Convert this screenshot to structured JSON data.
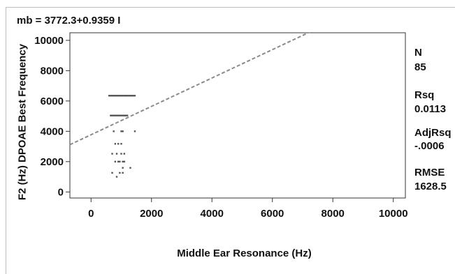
{
  "chart_data": {
    "type": "scatter",
    "title": "mb = 3772.3+0.9359 I",
    "xlabel": "Middle Ear Resonance (Hz)",
    "ylabel": "F2 (Hz) DPOAE Best Frequency",
    "xlim": [
      -700,
      10400
    ],
    "ylim": [
      -400,
      10500
    ],
    "x_ticks": [
      0,
      2000,
      4000,
      6000,
      8000,
      10000
    ],
    "y_ticks": [
      0,
      2000,
      4000,
      6000,
      8000,
      10000
    ],
    "grid": false,
    "fit_line": {
      "intercept": 3772.3,
      "slope": 0.9359,
      "style": "dashed"
    },
    "stats": [
      {
        "label": "N",
        "value": "85"
      },
      {
        "label": "Rsq",
        "value": "0.0113"
      },
      {
        "label": "AdjRsq",
        "value": "-.0006"
      },
      {
        "label": "RMSE",
        "value": "1628.5"
      }
    ],
    "points": [
      [
        600,
        6350
      ],
      [
        650,
        6350
      ],
      [
        700,
        6350
      ],
      [
        750,
        6350
      ],
      [
        800,
        6350
      ],
      [
        850,
        6350
      ],
      [
        900,
        6350
      ],
      [
        950,
        6350
      ],
      [
        1000,
        6350
      ],
      [
        1050,
        6350
      ],
      [
        1100,
        6350
      ],
      [
        1150,
        6350
      ],
      [
        1200,
        6350
      ],
      [
        1250,
        6350
      ],
      [
        1300,
        6350
      ],
      [
        1350,
        6350
      ],
      [
        1400,
        6350
      ],
      [
        1450,
        6350
      ],
      [
        650,
        5040
      ],
      [
        700,
        5040
      ],
      [
        750,
        5040
      ],
      [
        800,
        5040
      ],
      [
        850,
        5040
      ],
      [
        900,
        5040
      ],
      [
        950,
        5040
      ],
      [
        1000,
        5040
      ],
      [
        1050,
        5040
      ],
      [
        1100,
        5040
      ],
      [
        1150,
        5040
      ],
      [
        1200,
        5040
      ],
      [
        750,
        4000
      ],
      [
        1000,
        4000
      ],
      [
        1050,
        4000
      ],
      [
        1450,
        4000
      ],
      [
        800,
        3175
      ],
      [
        900,
        3175
      ],
      [
        1000,
        3175
      ],
      [
        700,
        2520
      ],
      [
        850,
        2520
      ],
      [
        1000,
        2520
      ],
      [
        1100,
        2520
      ],
      [
        800,
        2000
      ],
      [
        900,
        2000
      ],
      [
        950,
        2000
      ],
      [
        1050,
        2000
      ],
      [
        1100,
        2000
      ],
      [
        1050,
        1590
      ],
      [
        1300,
        1590
      ],
      [
        700,
        1260
      ],
      [
        950,
        1260
      ],
      [
        1050,
        1260
      ],
      [
        850,
        1000
      ]
    ]
  }
}
